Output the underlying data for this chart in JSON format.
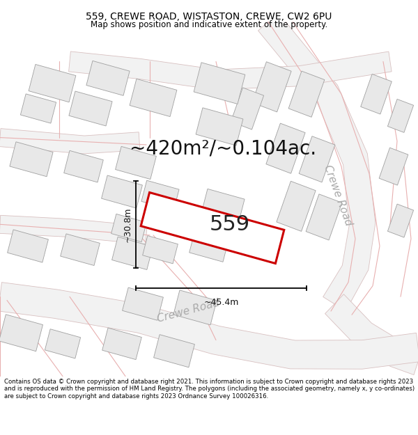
{
  "title_line1": "559, CREWE ROAD, WISTASTON, CREWE, CW2 6PU",
  "title_line2": "Map shows position and indicative extent of the property.",
  "footer_text": "Contains OS data © Crown copyright and database right 2021. This information is subject to Crown copyright and database rights 2023 and is reproduced with the permission of HM Land Registry. The polygons (including the associated geometry, namely x, y co-ordinates) are subject to Crown copyright and database rights 2023 Ordnance Survey 100026316.",
  "area_label": "~420m²/~0.104ac.",
  "property_number": "559",
  "width_label": "~45.4m",
  "height_label": "~30.8m",
  "road_label_ne": "Crewe Road",
  "road_label_sw": "Crewe Road",
  "map_bg": "#ffffff",
  "building_fill": "#e8e8e8",
  "building_edge": "#b0b0b0",
  "road_line_color": "#e8a0a0",
  "road_area_color": "#f0f0f0",
  "road_area_edge": "#c8c8c8",
  "property_outline": "#dd0000",
  "property_fill": "#ffffff",
  "dim_line_color": "#000000",
  "title_fontsize": 10,
  "subtitle_fontsize": 8.5,
  "area_fontsize": 20,
  "prop_num_fontsize": 22,
  "dim_fontsize": 9,
  "road_label_fontsize": 11,
  "footer_fontsize": 6.2
}
